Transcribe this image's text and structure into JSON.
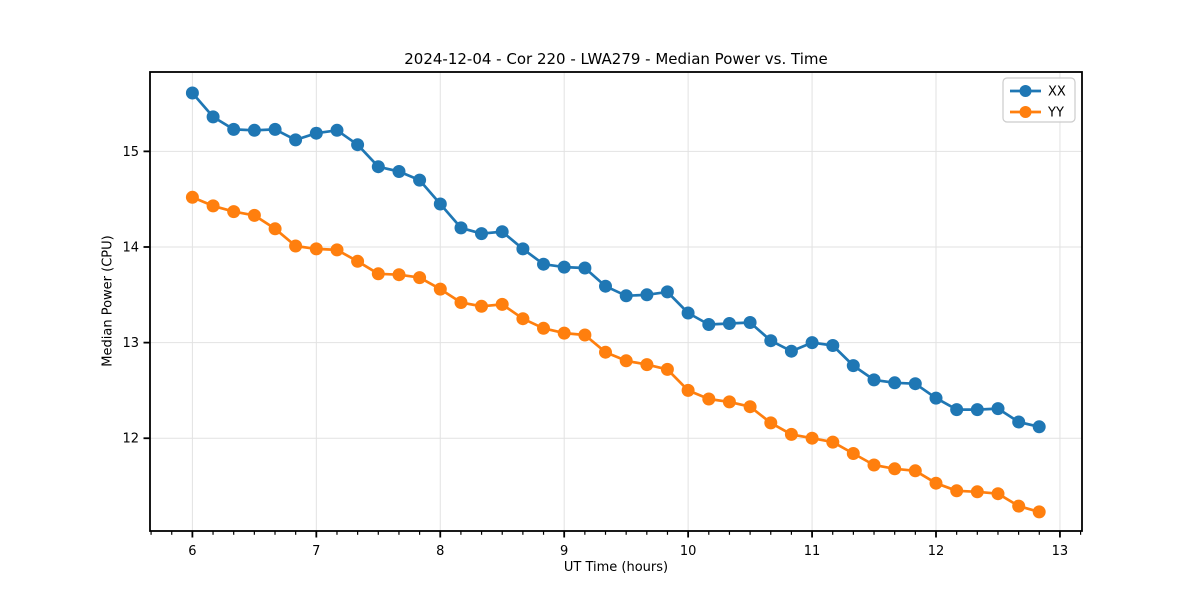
{
  "figure": {
    "background": "#ffffff"
  },
  "chart_data": {
    "type": "line",
    "title": "2024-12-04 - Cor 220 - LWA279 - Median Power vs. Time",
    "xlabel": "UT Time (hours)",
    "ylabel": "Median Power (CPU)",
    "xlim": [
      5.658,
      13.178
    ],
    "ylim": [
      11.03,
      15.83
    ],
    "x_major_ticks": [
      6,
      7,
      8,
      9,
      10,
      11,
      12,
      13
    ],
    "y_major_ticks": [
      12,
      13,
      14,
      15
    ],
    "x_minor_tick_step_hours": 0.1667,
    "grid": true,
    "grid_color": "#e2e2e2",
    "legend_position": "upper right",
    "x": [
      6.0,
      6.167,
      6.333,
      6.5,
      6.667,
      6.833,
      7.0,
      7.167,
      7.333,
      7.5,
      7.667,
      7.833,
      8.0,
      8.167,
      8.333,
      8.5,
      8.667,
      8.833,
      9.0,
      9.167,
      9.333,
      9.5,
      9.667,
      9.833,
      10.0,
      10.167,
      10.333,
      10.5,
      10.667,
      10.833,
      11.0,
      11.167,
      11.333,
      11.5,
      11.667,
      11.833,
      12.0,
      12.167,
      12.333,
      12.5,
      12.667,
      12.833
    ],
    "series": [
      {
        "name": "XX",
        "color": "#1f77b4",
        "values": [
          15.61,
          15.36,
          15.23,
          15.22,
          15.23,
          15.12,
          15.19,
          15.22,
          15.07,
          14.84,
          14.79,
          14.7,
          14.45,
          14.2,
          14.14,
          14.16,
          13.98,
          13.82,
          13.79,
          13.78,
          13.59,
          13.49,
          13.5,
          13.53,
          13.31,
          13.19,
          13.2,
          13.21,
          13.02,
          12.91,
          13.0,
          12.97,
          12.76,
          12.61,
          12.58,
          12.57,
          12.42,
          12.3,
          12.3,
          12.31,
          12.17,
          12.12
        ]
      },
      {
        "name": "YY",
        "color": "#ff7f0e",
        "values": [
          14.52,
          14.43,
          14.37,
          14.33,
          14.19,
          14.01,
          13.98,
          13.97,
          13.85,
          13.72,
          13.71,
          13.68,
          13.56,
          13.42,
          13.38,
          13.4,
          13.25,
          13.15,
          13.1,
          13.08,
          12.9,
          12.81,
          12.77,
          12.72,
          12.5,
          12.41,
          12.38,
          12.33,
          12.16,
          12.04,
          12.0,
          11.96,
          11.84,
          11.72,
          11.68,
          11.66,
          11.53,
          11.45,
          11.44,
          11.42,
          11.29,
          11.23
        ]
      }
    ]
  }
}
